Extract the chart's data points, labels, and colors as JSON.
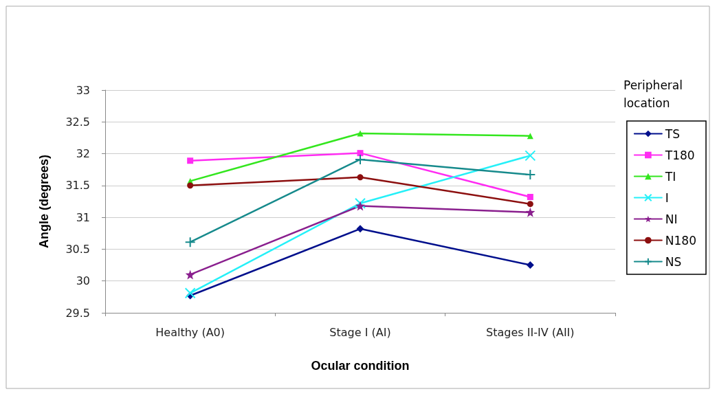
{
  "chart_data": {
    "type": "line",
    "xlabel": "Ocular condition",
    "ylabel": "Angle (degrees)",
    "legend_title": "Peripheral location",
    "categories": [
      "Healthy (A0)",
      "Stage I (AI)",
      "Stages II-IV (AII)"
    ],
    "ylim": [
      29.5,
      33
    ],
    "yticks": [
      29.5,
      30,
      30.5,
      31,
      31.5,
      32,
      32.5,
      33
    ],
    "grid": "y",
    "legend": "right",
    "line_style": "solid",
    "series": [
      {
        "name": "TS",
        "color": "#000f8c",
        "marker": "diamond",
        "values": [
          29.77,
          30.82,
          30.25
        ]
      },
      {
        "name": "T180",
        "color": "#ff2cf2",
        "marker": "square",
        "values": [
          31.89,
          32.01,
          31.32
        ]
      },
      {
        "name": "TI",
        "color": "#33e61e",
        "marker": "triangle",
        "values": [
          31.57,
          32.32,
          32.28
        ]
      },
      {
        "name": "I",
        "color": "#25f0f8",
        "marker": "cross",
        "values": [
          29.81,
          31.22,
          31.97
        ]
      },
      {
        "name": "NI",
        "color": "#8a1f8e",
        "marker": "star",
        "values": [
          30.1,
          31.18,
          31.08
        ]
      },
      {
        "name": "N180",
        "color": "#8c0f0f",
        "marker": "circle",
        "values": [
          31.5,
          31.63,
          31.21
        ]
      },
      {
        "name": "NS",
        "color": "#168a8c",
        "marker": "plus",
        "values": [
          30.61,
          31.91,
          31.67
        ]
      }
    ]
  }
}
